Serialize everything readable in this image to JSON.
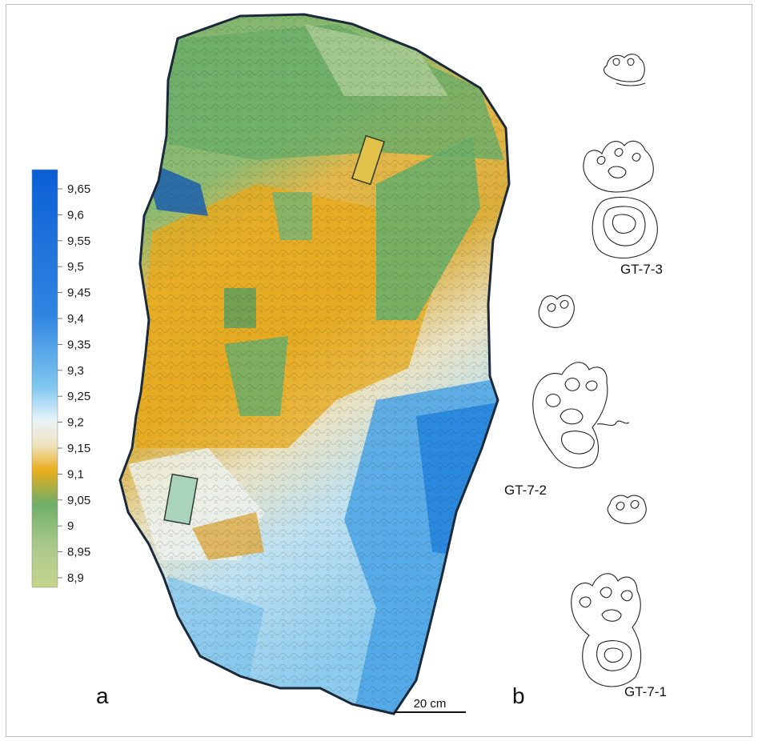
{
  "legend": {
    "ticks": [
      "9,65",
      "9,6",
      "9,55",
      "9,5",
      "9,45",
      "9,4",
      "9,35",
      "9,3",
      "9,25",
      "9,2",
      "9,15",
      "9,1",
      "9,05",
      "9",
      "8,95",
      "8,9"
    ],
    "colors": {
      "high": "#0b5fd6",
      "mid_blue": "#4aa3e6",
      "light_blue": "#bfe6f5",
      "cream": "#f1e8cf",
      "orange": "#e9ad1c",
      "green": "#6fae68",
      "pale_green": "#b3cf93"
    }
  },
  "panel_a": {
    "letter": "a"
  },
  "panel_b": {
    "letter": "b"
  },
  "scale_bar": {
    "label": "20 cm"
  },
  "tracks": [
    {
      "label": "GT-7-3"
    },
    {
      "label": "GT-7-2"
    },
    {
      "label": "GT-7-1"
    }
  ]
}
